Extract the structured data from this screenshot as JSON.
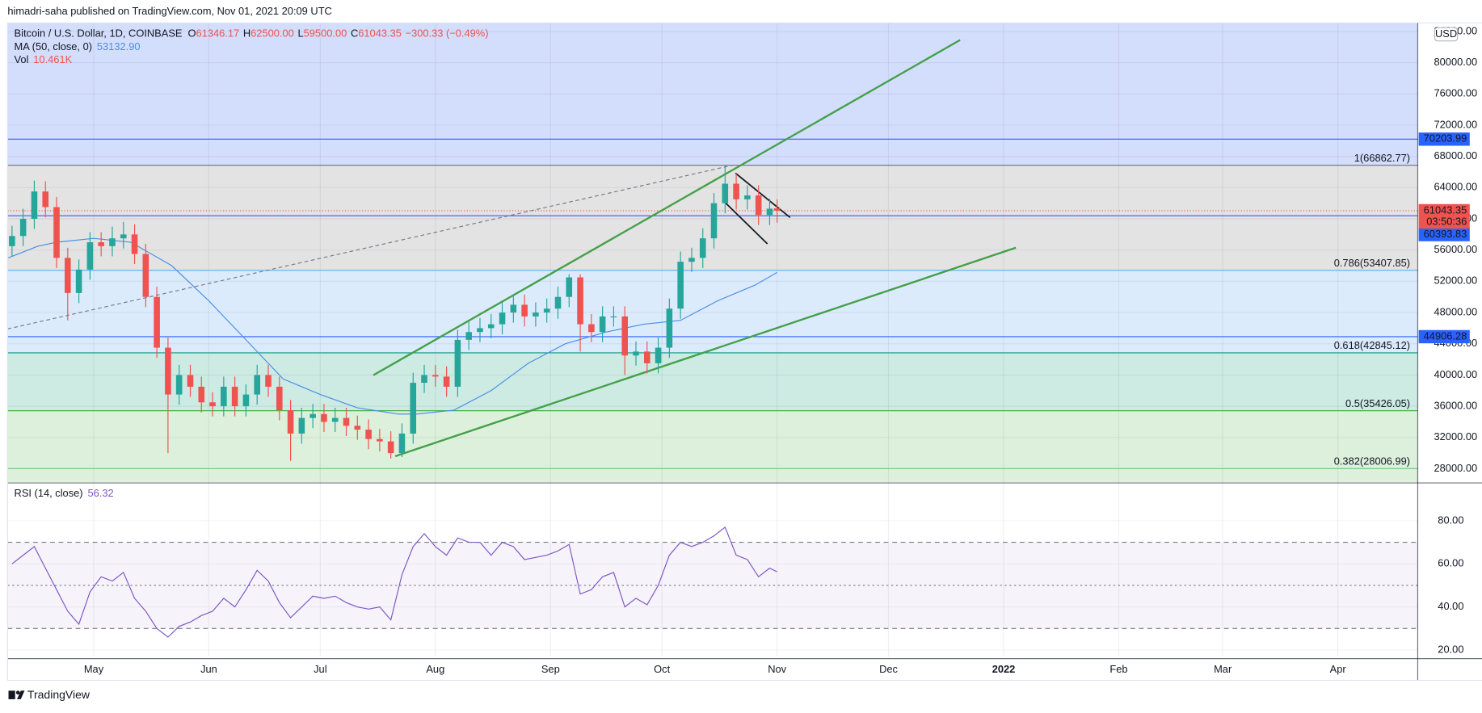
{
  "chart_data": {
    "type": "candlestick",
    "published": "himadri-saha published on TradingView.com, Nov 01, 2021 20:09 UTC",
    "symbol": "Bitcoin / U.S. Dollar, 1D, COINBASE",
    "currency": "USD",
    "brand": "TradingView",
    "up_color": "#26a69a",
    "down_color": "#ef5350",
    "xlim": [
      6.8,
      386.5
    ],
    "xticks": [
      {
        "value": 30,
        "label": "May"
      },
      {
        "value": 61,
        "label": "Jun"
      },
      {
        "value": 91,
        "label": "Jul"
      },
      {
        "value": 122,
        "label": "Aug"
      },
      {
        "value": 153,
        "label": "Sep"
      },
      {
        "value": 183,
        "label": "Oct"
      },
      {
        "value": 214,
        "label": "Nov"
      },
      {
        "value": 244,
        "label": "Dec"
      },
      {
        "value": 275,
        "label": "2022",
        "bold": true
      },
      {
        "value": 306,
        "label": "Feb"
      },
      {
        "value": 334,
        "label": "Mar"
      },
      {
        "value": 365,
        "label": "Apr"
      }
    ],
    "ylim": [
      26300,
      85080
    ],
    "yticks": [
      {
        "value": 28000,
        "label": "28000.00"
      },
      {
        "value": 32000,
        "label": "32000.00"
      },
      {
        "value": 36000,
        "label": "36000.00"
      },
      {
        "value": 40000,
        "label": "40000.00"
      },
      {
        "value": 44000,
        "label": "44000.00"
      },
      {
        "value": 48000,
        "label": "48000.00"
      },
      {
        "value": 52000,
        "label": "52000.00"
      },
      {
        "value": 56000,
        "label": "56000.00"
      },
      {
        "value": 60000,
        "label": "60000.00"
      },
      {
        "value": 64000,
        "label": "64000.00"
      },
      {
        "value": 68000,
        "label": "68000.00"
      },
      {
        "value": 72000,
        "label": "72000.00"
      },
      {
        "value": 76000,
        "label": "76000.00"
      },
      {
        "value": 80000,
        "label": "80000.00"
      },
      {
        "value": 84000,
        "label": "84000.00"
      }
    ],
    "grid": true,
    "x": [
      8,
      11,
      14,
      17,
      20,
      23,
      26,
      29,
      32,
      35,
      38,
      41,
      44,
      47,
      50,
      53,
      56,
      59,
      62,
      65,
      68,
      71,
      74,
      77,
      80,
      83,
      86,
      89,
      92,
      95,
      98,
      101,
      104,
      107,
      110,
      113,
      116,
      119,
      122,
      125,
      128,
      131,
      134,
      137,
      140,
      143,
      146,
      149,
      152,
      155,
      158,
      161,
      164,
      167,
      170,
      173,
      176,
      179,
      182,
      185,
      188,
      191,
      194,
      197,
      200,
      203,
      206,
      209,
      212
    ],
    "open": [
      56500,
      57800,
      60000,
      63500,
      61500,
      55000,
      50500,
      53500,
      57000,
      56500,
      57500,
      58000,
      55500,
      50000,
      43500,
      37500,
      40000,
      38500,
      36500,
      36000,
      38500,
      36000,
      37500,
      40000,
      38500,
      35500,
      32500,
      34500,
      35000,
      34000,
      34500,
      33500,
      33000,
      31800,
      31500,
      30000,
      32500,
      39000,
      40000,
      39800,
      38500,
      44500,
      45500,
      46000,
      46500,
      48000,
      49000,
      47500,
      48000,
      48500,
      50000,
      52500,
      46500,
      45500,
      47500,
      47500,
      42500,
      43000,
      41500,
      43500,
      48500,
      54500,
      55000,
      57500,
      62000,
      64500,
      62500,
      63000,
      60500
    ],
    "high": [
      59100,
      61300,
      64900,
      64800,
      62800,
      56300,
      54800,
      58300,
      58300,
      59000,
      59600,
      59300,
      56800,
      51300,
      44800,
      41300,
      41300,
      39800,
      37800,
      39800,
      39800,
      38800,
      41300,
      41300,
      39800,
      36800,
      35800,
      36300,
      36300,
      35800,
      35800,
      34800,
      34300,
      33100,
      32800,
      33800,
      40300,
      41300,
      41300,
      41100,
      45800,
      46800,
      47300,
      47800,
      49300,
      50300,
      50300,
      49300,
      49800,
      51300,
      52900,
      52900,
      47800,
      48800,
      48800,
      48800,
      44300,
      44300,
      44800,
      49800,
      55800,
      56300,
      58800,
      63300,
      66900,
      65800,
      64300,
      64300,
      62600
    ],
    "low": [
      55200,
      56500,
      58700,
      60200,
      53700,
      47000,
      49200,
      52200,
      55200,
      55200,
      56200,
      54200,
      48700,
      42200,
      30000,
      36200,
      37200,
      35200,
      34700,
      34700,
      34700,
      34700,
      36200,
      37200,
      34200,
      29000,
      31200,
      33200,
      32700,
      32700,
      32200,
      31700,
      30500,
      30200,
      29300,
      29500,
      31200,
      37700,
      38500,
      37200,
      37200,
      43200,
      44200,
      44700,
      45200,
      46700,
      46200,
      46200,
      46700,
      47200,
      48700,
      43000,
      44200,
      44200,
      46200,
      40000,
      41200,
      40200,
      40200,
      42200,
      47200,
      53200,
      53700,
      56200,
      60700,
      61200,
      61200,
      59200,
      59200
    ],
    "close": [
      57800,
      60000,
      63500,
      61500,
      55000,
      50500,
      53500,
      57000,
      56500,
      57500,
      58000,
      55500,
      50000,
      43500,
      37500,
      40000,
      38500,
      36500,
      36000,
      38500,
      36000,
      37500,
      40000,
      38500,
      35500,
      32500,
      34500,
      35000,
      34000,
      34500,
      33500,
      33000,
      31800,
      31500,
      30000,
      32500,
      39000,
      40000,
      39800,
      38500,
      44500,
      45500,
      46000,
      46500,
      48000,
      49000,
      47500,
      48000,
      48500,
      50000,
      52500,
      46500,
      45500,
      47500,
      47500,
      42500,
      43000,
      41500,
      43500,
      48500,
      54500,
      55000,
      57500,
      62000,
      64500,
      62500,
      63000,
      60500,
      61300
    ],
    "last_bar": {
      "x": 214,
      "ohlc_labels": [
        "O",
        "H",
        "L",
        "C"
      ],
      "open": 61346.17,
      "high": {
        "value": 62500,
        "label": "62500.00"
      },
      "low": {
        "value": 59500,
        "label": "59500.00"
      },
      "close": 61043.35,
      "change": {
        "value": -300.33,
        "label": "−300.33 (−0.49%)"
      },
      "countdown": "03:50:36",
      "color": "#ef5350"
    },
    "ma": {
      "label": "MA (50, close, 0)",
      "value": 53132.9,
      "value_label": "53132.90",
      "color": "#4a8fe7",
      "x": [
        7,
        15,
        20,
        30,
        40,
        51,
        61,
        71,
        81,
        91,
        101,
        112,
        117,
        127,
        137,
        147,
        157,
        168,
        178,
        188,
        198,
        208
      ],
      "values": [
        55000,
        56500,
        57000,
        57500,
        57000,
        54000,
        49500,
        44500,
        39500,
        37500,
        35800,
        35000,
        35000,
        35500,
        38000,
        41500,
        44000,
        45500,
        46500,
        47000,
        49500,
        51500
      ]
    },
    "volume": {
      "label": "Vol",
      "text": "10.461K"
    },
    "hlines": {
      "values": [
        70203.99,
        60393.83,
        44906.28
      ],
      "color": "#2962ff"
    },
    "fib": {
      "levels": [
        {
          "value": 66862.77,
          "label": "1(66862.77)"
        },
        {
          "value": 53407.85,
          "label": "0.786(53407.85)"
        },
        {
          "value": 42845.12,
          "label": "0.618(42845.12)"
        },
        {
          "value": 35426.05,
          "label": "0.5(35426.05)"
        },
        {
          "value": 28006.99,
          "label": "0.382(28006.99)"
        }
      ],
      "colors": [
        "#787b86",
        "#64b5f6",
        "#089981",
        "#4caf50",
        "#81c784"
      ],
      "fills": [
        "#d3defc",
        "#e3e3e3",
        "#dcebfb",
        "#cdeae3",
        "#dcf0dc",
        "#dcf0dc"
      ]
    },
    "drawings": [
      {
        "x": [
          105.3,
          263.3
        ],
        "y": [
          39980,
          82900
        ],
        "color": "#43a047",
        "width": 2,
        "dash": false
      },
      {
        "x": [
          111.2,
          278.3
        ],
        "y": [
          29600,
          56300
        ],
        "color": "#43a047",
        "width": 2,
        "dash": false
      },
      {
        "x": [
          6.8,
          202
        ],
        "y": [
          45900,
          66862.77
        ],
        "color": "#787b86",
        "width": 1,
        "dash": true
      },
      {
        "x": [
          202.8,
          217.5
        ],
        "y": [
          65850,
          60170
        ],
        "color": "#131722",
        "width": 1.5,
        "dash": false
      },
      {
        "x": [
          200.2,
          211.4
        ],
        "y": [
          62000,
          56800
        ],
        "color": "#131722",
        "width": 1.5,
        "dash": false
      }
    ],
    "rsi": {
      "label": "RSI (14, close)",
      "value": 56.32,
      "color": "#7e57c2",
      "ylim": [
        16.9,
        95.8
      ],
      "yticks": [
        {
          "value": 20,
          "label": "20.00"
        },
        {
          "value": 40,
          "label": "40.00"
        },
        {
          "value": 60,
          "label": "60.00"
        },
        {
          "value": 80,
          "label": "80.00"
        }
      ],
      "levels": [
        70,
        50,
        30
      ],
      "values": [
        60,
        64,
        68,
        58,
        48,
        38,
        32,
        47,
        54,
        52,
        56,
        44,
        38,
        30,
        26,
        31,
        33,
        36,
        38,
        44,
        40,
        48,
        57,
        52,
        42,
        35,
        40,
        45,
        44,
        45,
        42,
        40,
        39,
        40,
        34,
        55,
        68,
        74,
        68,
        64,
        72,
        70,
        70,
        64,
        70,
        68,
        62,
        63,
        64,
        66,
        69,
        46,
        48,
        54,
        56,
        40,
        44,
        41,
        50,
        64,
        70,
        68,
        70,
        73,
        77,
        64,
        62,
        54,
        58
      ]
    }
  }
}
